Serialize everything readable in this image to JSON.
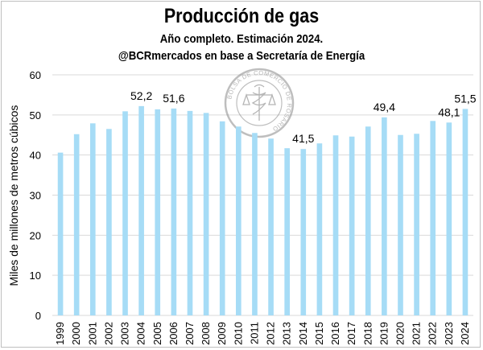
{
  "chart_data": {
    "type": "bar",
    "title": "Producción de gas",
    "subtitle": "Año completo. Estimación 2024.",
    "subtitle2": "@BCRmercados en base a Secretaría de Energía",
    "ylabel": "Miles de millones de metros cúbicos",
    "xlabel": "",
    "ylim": [
      0,
      60
    ],
    "yticks": [
      0,
      10,
      20,
      30,
      40,
      50,
      60
    ],
    "grid": true,
    "bar_color": "#a6dcf6",
    "categories": [
      "1999",
      "2000",
      "2001",
      "2002",
      "2003",
      "2004",
      "2005",
      "2006",
      "2007",
      "2008",
      "2009",
      "2010",
      "2011",
      "2012",
      "2013",
      "2014",
      "2015",
      "2016",
      "2017",
      "2018",
      "2019",
      "2020",
      "2021",
      "2022",
      "2023",
      "2024"
    ],
    "values": [
      40.6,
      45.2,
      47.9,
      46.5,
      50.9,
      52.2,
      51.4,
      51.6,
      51.0,
      50.5,
      48.4,
      47.1,
      45.5,
      44.1,
      41.7,
      41.5,
      42.9,
      44.9,
      44.6,
      47.1,
      49.4,
      45.0,
      45.3,
      48.5,
      48.1,
      51.5
    ],
    "data_labels": [
      {
        "category": "2004",
        "text": "52,2"
      },
      {
        "category": "2006",
        "text": "51,6"
      },
      {
        "category": "2014",
        "text": "41,5"
      },
      {
        "category": "2019",
        "text": "49,4"
      },
      {
        "category": "2023",
        "text": "48,1"
      },
      {
        "category": "2024",
        "text": "51,5"
      }
    ]
  },
  "watermark": {
    "text": "BOLSA DE COMERCIO DE ROSARIO",
    "icon": "caduceus-scales-seal-icon"
  }
}
